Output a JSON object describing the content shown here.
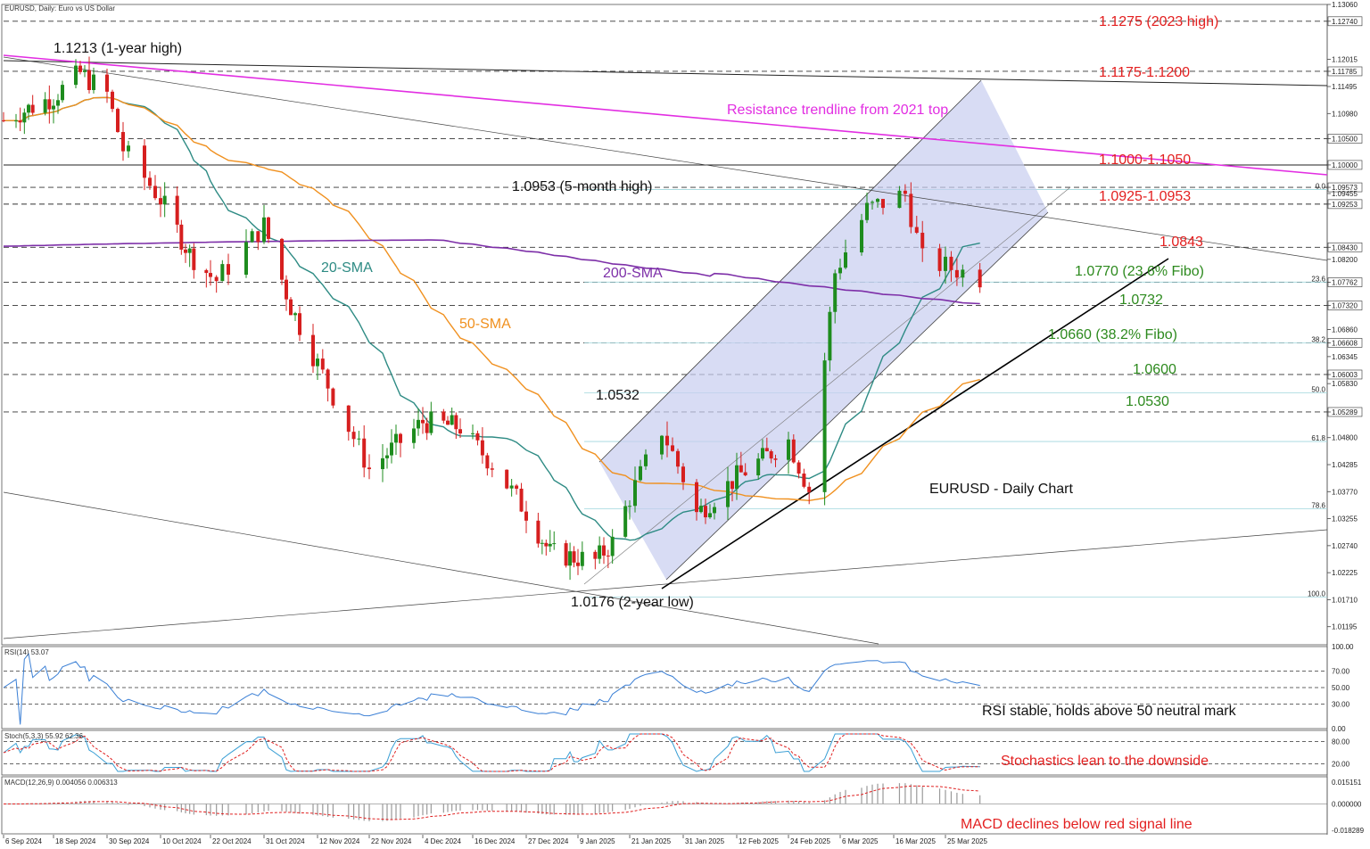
{
  "header": {
    "main_title": "EURUSD, Daily: Euro vs US Dollar",
    "rsi_title": "RSI(14) 53.07",
    "stoch_title": "Stoch(5,3,3) 55.92 62.36",
    "macd_title": "MACD(12,26,9) 0.004056 0.006313"
  },
  "chart_title": "EURUSD - Daily Chart",
  "colors": {
    "bull": "#1e8c1e",
    "bear": "#d61f1f",
    "sma20": "#2e8b84",
    "sma50": "#f0901e",
    "sma200": "#7d2fa8",
    "trend2021": "#e22ee2",
    "channel_fill": "#c8cdf0",
    "rsi": "#3a7fd5",
    "stoch_main": "#3a9fd5",
    "stoch_signal": "#e02020",
    "red_text": "#e32020",
    "green_text": "#2d8a1e"
  },
  "annotations": {
    "high_2023": "1.1275 (2023 high)",
    "one_year_high": "1.1213 (1-year high)",
    "zone_1175_1200": "1.1175-1.1200",
    "resistance_label": "Resistance trendline from 2021 top",
    "zone_1000_1050": "1.1000-1.1050",
    "five_month_high": "1.0953 (5-month high)",
    "zone_0925_0953": "1.0925-1.0953",
    "level_0843": "1.0843",
    "level_0770": "1.0770 (23.6% Fibo)",
    "level_0732": "1.0732",
    "level_0660": "1.0660 (38.2% Fibo)",
    "level_0600": "1.0600",
    "level_0532": "1.0532",
    "level_0530": "1.0530",
    "two_year_low": "1.0176 (2-year low)",
    "sma20_label": "20-SMA",
    "sma50_label": "50-SMA",
    "sma200_label": "200-SMA",
    "rsi_note": "RSI stable, holds above 50 neutral mark",
    "stoch_note": "Stochastics lean to the downside",
    "macd_note": "MACD declines below red signal line"
  },
  "fib_labels": [
    "0.0",
    "23.6",
    "38.2",
    "50.0",
    "61.8",
    "78.6",
    "100.0"
  ],
  "price_axis": [
    "1.13060",
    "1.12740",
    "1.12015",
    "1.11785",
    "1.11495",
    "1.10980",
    "1.10500",
    "1.10000",
    "1.09573",
    "1.09455",
    "1.09253",
    "1.08430",
    "1.08200",
    "1.07762",
    "1.07320",
    "1.06860",
    "1.06608",
    "1.06345",
    "1.06003",
    "1.05830",
    "1.05289",
    "1.04800",
    "1.04285",
    "1.03770",
    "1.03255",
    "1.02740",
    "1.02225",
    "1.01710",
    "1.01195"
  ],
  "rsi_axis": [
    "100.00",
    "70.00",
    "50.00",
    "30.00",
    "0.00"
  ],
  "stoch_axis": [
    "80.00",
    "20.00"
  ],
  "macd_axis": [
    "0.015151",
    "0.000000",
    "-0.018289"
  ],
  "time_axis": [
    "6 Sep 2024",
    "18 Sep 2024",
    "30 Sep 2024",
    "10 Oct 2024",
    "22 Oct 2024",
    "31 Oct 2024",
    "12 Nov 2024",
    "22 Nov 2024",
    "4 Dec 2024",
    "16 Dec 2024",
    "27 Dec 2024",
    "9 Jan 2025",
    "21 Jan 2025",
    "31 Jan 2025",
    "12 Feb 2025",
    "24 Feb 2025",
    "6 Mar 2025",
    "16 Mar 2025",
    "25 Mar 2025"
  ],
  "chart_data": {
    "type": "line",
    "title": "EURUSD, Daily: Euro vs US Dollar",
    "x_range": [
      "6 Sep 2024",
      "31 Mar 2025"
    ],
    "ylim": [
      1.0085,
      1.1306
    ],
    "close_path": [
      {
        "date": "6 Sep 2024",
        "close": 1.1085
      },
      {
        "date": "18 Sep 2024",
        "close": 1.113
      },
      {
        "date": "24 Sep 2024",
        "close": 1.1175
      },
      {
        "date": "30 Sep 2024",
        "close": 1.1135
      },
      {
        "date": "3 Oct 2024",
        "close": 1.103
      },
      {
        "date": "10 Oct 2024",
        "close": 1.0935
      },
      {
        "date": "17 Oct 2024",
        "close": 1.083
      },
      {
        "date": "23 Oct 2024",
        "close": 1.078
      },
      {
        "date": "31 Oct 2024",
        "close": 1.0885
      },
      {
        "date": "6 Nov 2024",
        "close": 1.073
      },
      {
        "date": "12 Nov 2024",
        "close": 1.062
      },
      {
        "date": "22 Nov 2024",
        "close": 1.042
      },
      {
        "date": "4 Dec 2024",
        "close": 1.051
      },
      {
        "date": "13 Dec 2024",
        "close": 1.05
      },
      {
        "date": "20 Dec 2024",
        "close": 1.043
      },
      {
        "date": "2 Jan 2025",
        "close": 1.026
      },
      {
        "date": "13 Jan 2025",
        "close": 1.0245
      },
      {
        "date": "17 Jan 2025",
        "close": 1.028
      },
      {
        "date": "27 Jan 2025",
        "close": 1.0495
      },
      {
        "date": "3 Feb 2025",
        "close": 1.0335
      },
      {
        "date": "12 Feb 2025",
        "close": 1.0405
      },
      {
        "date": "24 Feb 2025",
        "close": 1.0475
      },
      {
        "date": "28 Feb 2025",
        "close": 1.038
      },
      {
        "date": "5 Mar 2025",
        "close": 1.0795
      },
      {
        "date": "11 Mar 2025",
        "close": 1.0915
      },
      {
        "date": "18 Mar 2025",
        "close": 1.0945
      },
      {
        "date": "21 Mar 2025",
        "close": 1.082
      },
      {
        "date": "27 Mar 2025",
        "close": 1.08
      },
      {
        "date": "31 Mar 2025",
        "close": 1.0785
      }
    ],
    "indicators": {
      "sma_periods": [
        20,
        50,
        200
      ],
      "rsi_last": 53.07,
      "stoch_last": [
        55.92,
        62.36
      ],
      "macd_last": [
        0.004056,
        0.006313
      ]
    }
  }
}
